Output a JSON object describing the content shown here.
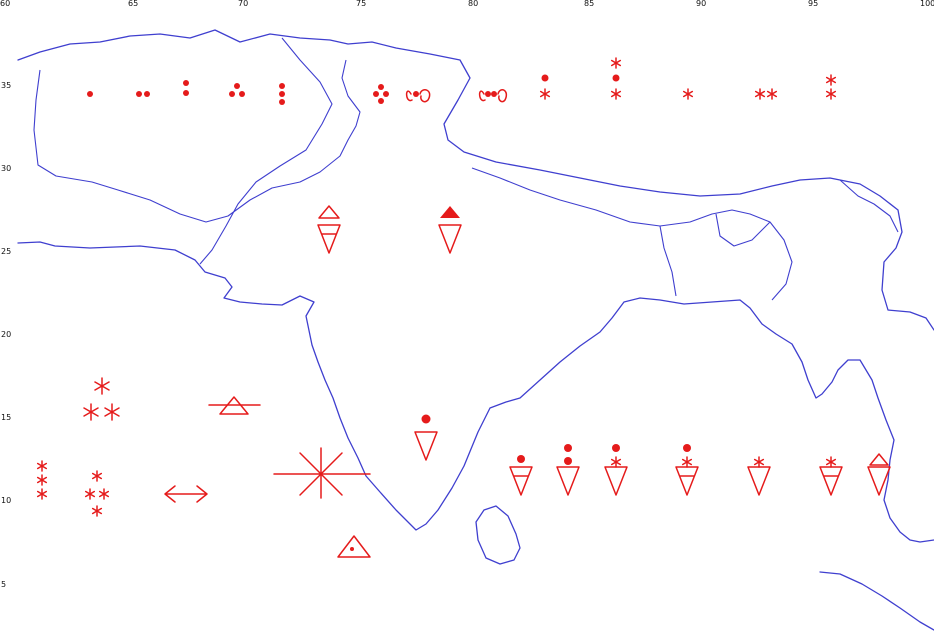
{
  "map": {
    "colors": {
      "coastline": "#3f3fcf",
      "symbol": "#e51b1b",
      "tick_text": "#111111",
      "background": "#ffffff"
    },
    "longitude_ticks": [
      "60",
      "65",
      "70",
      "75",
      "80",
      "85",
      "90",
      "95",
      "100"
    ],
    "latitude_ticks": [
      "35",
      "30",
      "25",
      "20",
      "15",
      "10",
      "5"
    ]
  }
}
